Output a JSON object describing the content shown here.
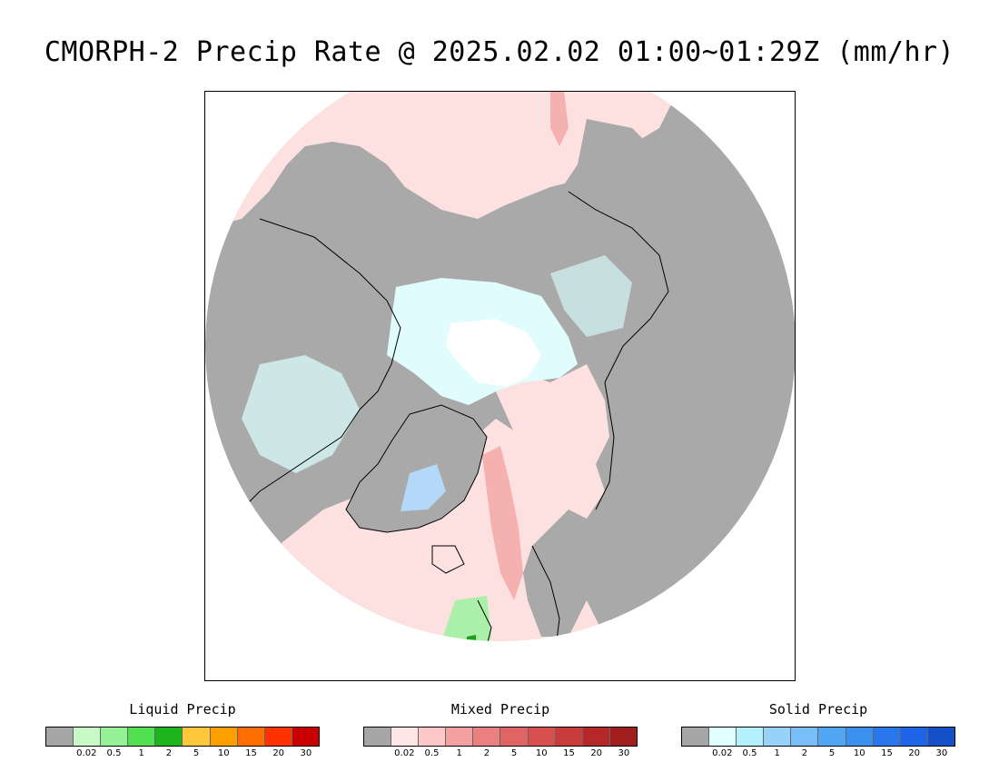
{
  "title": "CMORPH-2 Precip Rate @ 2025.02.02 01:00~01:29Z (mm/hr)",
  "map": {
    "projection": "north-polar-stereographic",
    "colors": {
      "no_data": "#a9a9a9",
      "mixed_light": "#fde0e0",
      "mixed_mid": "#f5a6a6",
      "solid_light": "#e0fcfc",
      "solid_mid": "#8cc8f0",
      "liquid_light": "#aaf0aa",
      "liquid_dark": "#1aa01a",
      "pole_white": "#ffffff",
      "coast": "#000000"
    }
  },
  "legends": [
    {
      "title": "Liquid Precip",
      "colors": [
        "#a6a6a6",
        "#c8fac8",
        "#96f096",
        "#50e050",
        "#1eb41e",
        "#ffc83c",
        "#ffa000",
        "#ff6e00",
        "#ff3200",
        "#c80000"
      ],
      "ticks": [
        "0.02",
        "0.5",
        "1",
        "2",
        "5",
        "10",
        "15",
        "20",
        "30"
      ]
    },
    {
      "title": "Mixed Precip",
      "colors": [
        "#a6a6a6",
        "#ffe6e6",
        "#ffc8c8",
        "#f5a0a0",
        "#eb8080",
        "#e06464",
        "#d65050",
        "#c83c3c",
        "#b42828",
        "#a01e1e"
      ],
      "ticks": [
        "0.02",
        "0.5",
        "1",
        "2",
        "5",
        "10",
        "15",
        "20",
        "30"
      ]
    },
    {
      "title": "Solid Precip",
      "colors": [
        "#a6a6a6",
        "#e0ffff",
        "#b4f0ff",
        "#96d2fa",
        "#78befa",
        "#50a5f5",
        "#3c91f0",
        "#2878eb",
        "#1e64e6",
        "#1450c8"
      ],
      "ticks": [
        "0.02",
        "0.5",
        "1",
        "2",
        "5",
        "10",
        "15",
        "20",
        "30"
      ]
    }
  ]
}
